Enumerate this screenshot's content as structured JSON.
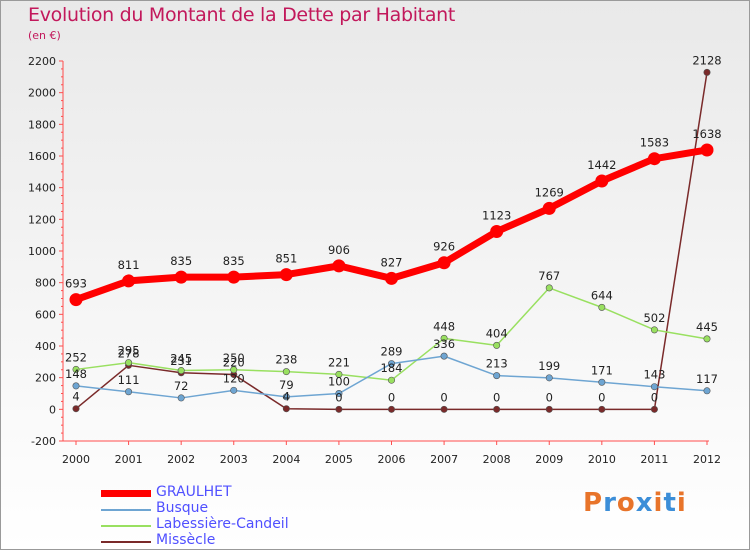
{
  "header": {
    "title": "Evolution du Montant de la Dette par Habitant",
    "subtitle": "(en €)"
  },
  "brand": {
    "text": "Proxiti",
    "colors": [
      "#e8742a",
      "#3c8ed8",
      "#e8742a",
      "#3c8ed8",
      "#e8742a",
      "#3c8ed8",
      "#e8742a"
    ]
  },
  "chart_data": {
    "type": "line",
    "title": "Evolution du Montant de la Dette par Habitant",
    "subtitle": "(en €)",
    "x": [
      "2000",
      "2001",
      "2002",
      "2003",
      "2004",
      "2005",
      "2006",
      "2007",
      "2008",
      "2009",
      "2010",
      "2011",
      "2012"
    ],
    "ylim": [
      -200,
      2200
    ],
    "yticks": [
      -200,
      0,
      200,
      400,
      600,
      800,
      1000,
      1200,
      1400,
      1600,
      1800,
      2000,
      2200
    ],
    "grid": false,
    "legend": "bottom-left",
    "series": [
      {
        "name": "GRAULHET",
        "color": "#ff0000",
        "width": 7,
        "values": [
          693,
          811,
          835,
          835,
          851,
          906,
          827,
          926,
          1123,
          1269,
          1442,
          1583,
          1638
        ],
        "labels": [
          "693",
          "811",
          "835",
          "835",
          "851",
          "906",
          "827",
          "926",
          "1123",
          "1269",
          "1442",
          "1583",
          "1638"
        ]
      },
      {
        "name": "Busque",
        "color": "#6ea5d2",
        "width": 1.5,
        "values": [
          148,
          111,
          72,
          120,
          79,
          100,
          289,
          336,
          213,
          199,
          171,
          143,
          117
        ],
        "labels": [
          "148",
          "111",
          "72",
          "120",
          "79",
          "100",
          "289",
          "336",
          "213",
          "199",
          "171",
          "143",
          "117"
        ]
      },
      {
        "name": "Labessière-Candeil",
        "color": "#99e060",
        "width": 1.5,
        "values": [
          252,
          295,
          245,
          250,
          238,
          221,
          184,
          448,
          404,
          767,
          644,
          502,
          445
        ],
        "labels": [
          "252",
          "295",
          "245",
          "250",
          "238",
          "221",
          "184",
          "448",
          "404",
          "767",
          "644",
          "502",
          "445"
        ]
      },
      {
        "name": "Missècle",
        "color": "#7a2a2a",
        "width": 1.5,
        "values": [
          4,
          278,
          231,
          220,
          4,
          0,
          0,
          0,
          0,
          0,
          0,
          0,
          2128
        ],
        "labels": [
          "4",
          "278",
          "231",
          "220",
          "4",
          "0",
          "0",
          "0",
          "0",
          "0",
          "0",
          "0",
          "2128"
        ]
      }
    ]
  }
}
